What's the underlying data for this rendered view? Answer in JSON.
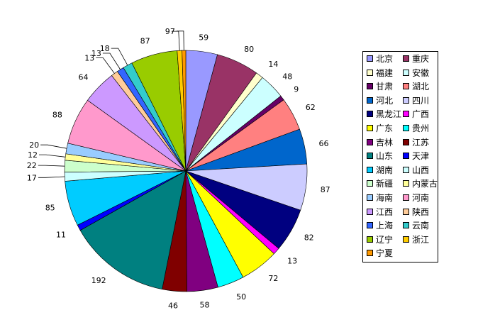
{
  "chart_data": {
    "type": "pie",
    "title": "",
    "categories": [
      "北京",
      "重庆",
      "福建",
      "安徽",
      "甘肃",
      "湖北",
      "河北",
      "四川",
      "黑龙江",
      "广西",
      "广东",
      "贵州",
      "吉林",
      "江苏",
      "山东",
      "天津",
      "湖南",
      "山西",
      "新疆",
      "内蒙古",
      "海南",
      "河南",
      "江西",
      "陕西",
      "上海",
      "云南",
      "辽宁",
      "浙江",
      "宁夏"
    ],
    "values": [
      59,
      80,
      14,
      48,
      9,
      62,
      66,
      87,
      82,
      13,
      72,
      50,
      58,
      46,
      192,
      11,
      85,
      17,
      22,
      12,
      20,
      88,
      64,
      13,
      13,
      18,
      87,
      9,
      7
    ],
    "colors": [
      "#9999FF",
      "#993366",
      "#FFFFCC",
      "#CCFFFF",
      "#660066",
      "#FF8080",
      "#0066CC",
      "#CCCCFF",
      "#000080",
      "#FF00FF",
      "#FFFF00",
      "#00FFFF",
      "#800080",
      "#800000",
      "#008080",
      "#0000FF",
      "#00CCFF",
      "#CCFFFF",
      "#CCFFCC",
      "#FFFF99",
      "#99CCFF",
      "#FF99CC",
      "#CC99FF",
      "#FFCC99",
      "#3366FF",
      "#33CCCC",
      "#99CC00",
      "#FFCC00",
      "#FF9900"
    ],
    "legend_position": "right"
  }
}
